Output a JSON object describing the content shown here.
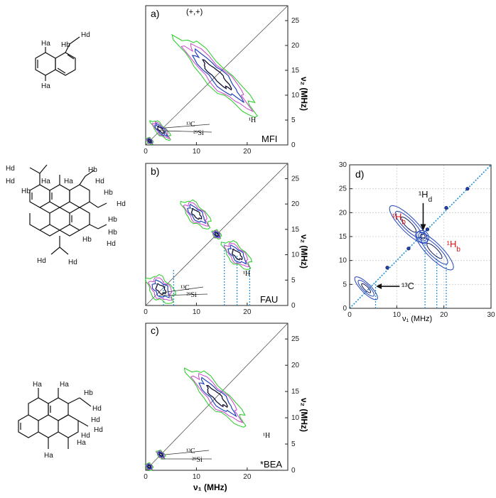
{
  "colors": {
    "contour_outer": "#22cc22",
    "contour_mid": "#cc44cc",
    "contour_inner": "#2244bb",
    "contour_core": "#111133",
    "guide_dotted": "#1a8fd6",
    "label_red": "#dd1111",
    "grid": "#cccccc"
  },
  "molecules": {
    "mol1": {
      "labels": [
        "Ha",
        "Hb",
        "Hd",
        "Ha"
      ]
    },
    "mol2": {
      "labels": [
        "Hd",
        "Hd",
        "Ha",
        "Ha",
        "Hb",
        "Hb",
        "Hd",
        "Hb",
        "Hd",
        "Hb",
        "Hb",
        "Hd",
        "Hb",
        "Hd",
        "Hd"
      ]
    },
    "mol3": {
      "labels": [
        "Ha",
        "Ha",
        "Hb",
        "Hd",
        "Hd",
        "Hd",
        "Hd",
        "Ha",
        "Ha"
      ]
    }
  },
  "chart_data": [
    {
      "id": "a",
      "type": "heatmap",
      "panel_label": "a)",
      "sign_label": "(+,+)",
      "framework": "MFI",
      "ylabel": "ν₂ (MHz)",
      "xlim": [
        0,
        28
      ],
      "ylim": [
        0,
        28
      ],
      "xticks": [
        0,
        10,
        20
      ],
      "yticks": [
        0,
        5,
        10,
        15,
        20,
        25
      ],
      "annotations": [
        "¹³C",
        "²⁹Si",
        "¹H"
      ],
      "peaks": [
        {
          "nu1": 14,
          "nu2": 14,
          "label": "¹H"
        },
        {
          "nu1": 3,
          "nu2": 3,
          "label": "¹³C"
        },
        {
          "nu1": 1,
          "nu2": 1,
          "label": "²⁹Si"
        }
      ],
      "guides": []
    },
    {
      "id": "b",
      "type": "heatmap",
      "panel_label": "b)",
      "framework": "FAU",
      "ylabel": "ν₂ (MHz)",
      "xlim": [
        0,
        28
      ],
      "ylim": [
        0,
        28
      ],
      "xticks": [
        0,
        10,
        20
      ],
      "yticks": [
        0,
        5,
        10,
        15,
        20,
        25
      ],
      "annotations": [
        "¹³C",
        "²⁹Si",
        "¹H"
      ],
      "peaks": [
        {
          "nu1": 10,
          "nu2": 18,
          "label": "¹H"
        },
        {
          "nu1": 18,
          "nu2": 10,
          "label": "¹H"
        },
        {
          "nu1": 14,
          "nu2": 14,
          "label": "¹H"
        },
        {
          "nu1": 3,
          "nu2": 3,
          "label": "¹³C"
        }
      ],
      "guides": [
        3.5,
        5.5,
        15.5,
        18,
        20.5
      ]
    },
    {
      "id": "c",
      "type": "heatmap",
      "panel_label": "c)",
      "framework": "*BEA",
      "xlabel": "ν₁ (MHz)",
      "ylabel": "ν₂ (MHz)",
      "xlim": [
        0,
        28
      ],
      "ylim": [
        0,
        28
      ],
      "xticks": [
        0,
        10,
        20
      ],
      "yticks": [
        0,
        5,
        10,
        15,
        20,
        25
      ],
      "annotations": [
        "¹³C",
        "²⁹Si",
        "¹H"
      ],
      "peaks": [
        {
          "nu1": 14,
          "nu2": 14,
          "label": "¹H"
        },
        {
          "nu1": 3,
          "nu2": 3,
          "label": "¹³C"
        }
      ],
      "guides": []
    },
    {
      "id": "d",
      "type": "heatmap",
      "panel_label": "d)",
      "xlabel": "ν₁ (MHz)",
      "xlim": [
        0,
        30
      ],
      "ylim": [
        0,
        30
      ],
      "xticks": [
        0,
        10,
        20,
        30
      ],
      "yticks": [
        0,
        5,
        10,
        15,
        20,
        25,
        30
      ],
      "grid": true,
      "annotations": [
        {
          "main": "¹H",
          "sub": "d",
          "color": "#111111"
        },
        {
          "main": "¹H",
          "sub": "b",
          "color": "#dd1111"
        },
        {
          "main": "¹H",
          "sub": "b",
          "color": "#dd1111"
        },
        {
          "main": "¹³C",
          "sub": "",
          "color": "#111111"
        }
      ],
      "peaks": [
        {
          "nu1": 15.5,
          "nu2": 15
        },
        {
          "nu1": 4,
          "nu2": 4
        },
        {
          "nu1": 8,
          "nu2": 8.5
        },
        {
          "nu1": 12.5,
          "nu2": 12.5
        },
        {
          "nu1": 20.5,
          "nu2": 21
        },
        {
          "nu1": 25,
          "nu2": 25
        }
      ],
      "guides": [
        5.5,
        16,
        18.5,
        20.5
      ]
    }
  ]
}
